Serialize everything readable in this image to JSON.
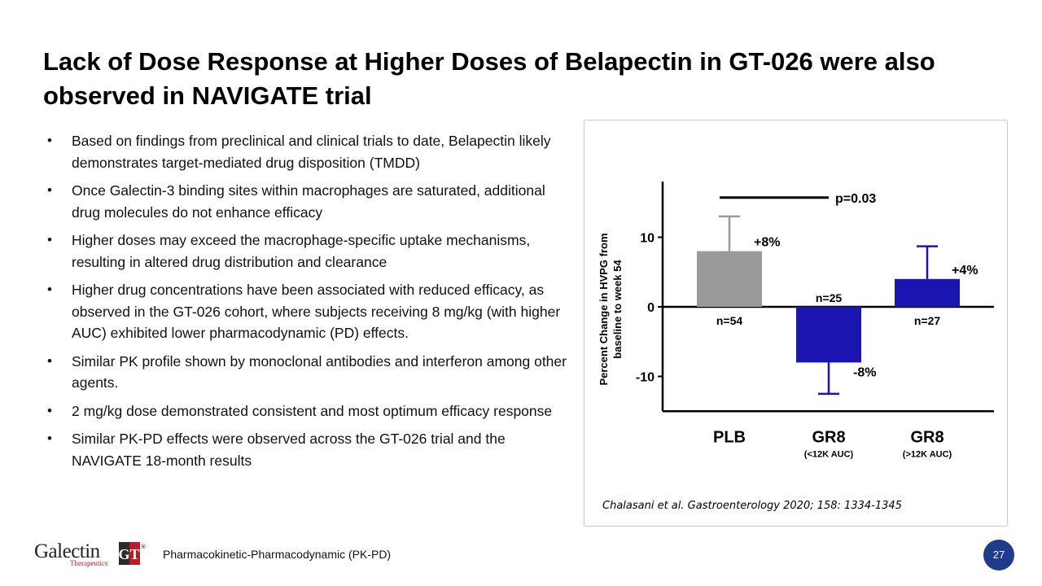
{
  "slide": {
    "title": "Lack of Dose Response at Higher Doses of Belapectin in GT-026 were also observed in NAVIGATE trial",
    "bullets": [
      "Based on findings from preclinical and clinical trials to date, Belapectin likely demonstrates target-mediated drug disposition (TMDD)",
      "Once Galectin-3 binding sites within macrophages are saturated, additional drug molecules do not enhance efficacy",
      "Higher doses may exceed the macrophage-specific uptake mechanisms, resulting in altered drug distribution and clearance",
      "Higher drug concentrations have been associated with reduced efficacy, as observed in the GT-026 cohort, where subjects receiving 8 mg/kg (with higher AUC) exhibited lower pharmacodynamic (PD) effects.",
      "Similar PK profile shown by monoclonal antibodies and interferon among other agents.",
      "2 mg/kg dose demonstrated consistent and most optimum efficacy response",
      "Similar PK-PD effects were observed across the GT-026 trial and the NAVIGATE 18-month results"
    ],
    "bullet_symbol": "•",
    "citation": "Chalasani et al. Gastroenterology 2020; 158: 1334-1345",
    "footer_text": "Pharmacokinetic-Pharmacodynamic (PK-PD)",
    "page_number": "27"
  },
  "logo": {
    "word": "Galectin",
    "sub": "Therapeutics",
    "mark": "GT",
    "registered": "®",
    "brand_color": "#b41e2a"
  },
  "colors": {
    "plb": "#999999",
    "gr8": "#1a14b0",
    "page_badge": "#1f3b8c"
  },
  "chart_data": {
    "type": "bar",
    "ylabel": "Percent Change in HVPG from baseline to week 54",
    "ylim": [
      -15,
      18
    ],
    "yticks": [
      -10,
      0,
      10
    ],
    "ytick_labels": [
      "-10",
      "0",
      "10"
    ],
    "categories": [
      {
        "label": "PLB",
        "sublabel": ""
      },
      {
        "label": "GR8",
        "sublabel": "(<12K AUC)"
      },
      {
        "label": "GR8",
        "sublabel": "(>12K AUC)"
      }
    ],
    "values": [
      8,
      -8,
      4
    ],
    "error_upper": [
      13,
      -8,
      8.7
    ],
    "error_lower": [
      8,
      -12.5,
      4
    ],
    "value_labels": [
      "+8%",
      "-8%",
      "+4%"
    ],
    "n_labels": [
      "n=54",
      "n=25",
      "n=27"
    ],
    "significance": {
      "text": "p=0.03",
      "from": 0,
      "to": 1,
      "level": 15.7
    }
  }
}
